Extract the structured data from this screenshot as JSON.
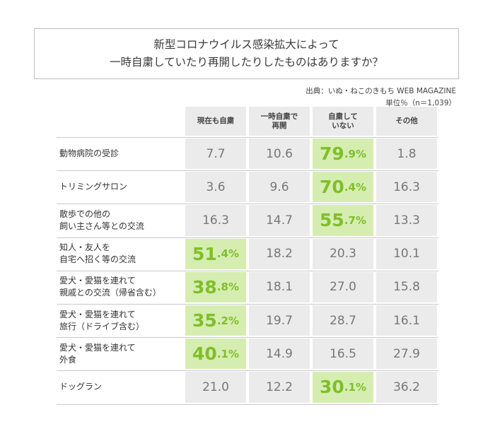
{
  "title": {
    "line1": "新型コロナウイルス感染拡大によって",
    "line2": "一時自粛していたり再開したりしたものはありますか？"
  },
  "source": "出典：いぬ・ねこのきもち WEB MAGAZINE",
  "unit": "単位％（n＝1,039）",
  "chart_data": {
    "type": "table",
    "columns": [
      "現在も自粛",
      "一時自粛で\n再開",
      "自粛して\nいない",
      "その他"
    ],
    "rows": [
      {
        "label": "動物病院の受診",
        "values": [
          "7.7",
          "10.6",
          "79.9",
          "1.8"
        ],
        "highlight": 2
      },
      {
        "label": "トリミングサロン",
        "values": [
          "3.6",
          "9.6",
          "70.4",
          "16.3"
        ],
        "highlight": 2
      },
      {
        "label": "散歩での他の\n飼い主さん等との交流",
        "values": [
          "16.3",
          "14.7",
          "55.7",
          "13.3"
        ],
        "highlight": 2
      },
      {
        "label": "知人・友人を\n自宅へ招く等の交流",
        "values": [
          "51.4",
          "18.2",
          "20.3",
          "10.1"
        ],
        "highlight": 0
      },
      {
        "label": "愛犬・愛猫を連れて\n親戚との交流（帰省含む）",
        "values": [
          "38.8",
          "18.1",
          "27.0",
          "15.8"
        ],
        "highlight": 0
      },
      {
        "label": "愛犬・愛猫を連れて\n旅行（ドライブ含む）",
        "values": [
          "35.2",
          "19.7",
          "28.7",
          "16.1"
        ],
        "highlight": 0
      },
      {
        "label": "愛犬・愛猫を連れて\n外食",
        "values": [
          "40.1",
          "14.9",
          "16.5",
          "27.9"
        ],
        "highlight": 0
      },
      {
        "label": "ドッグラン",
        "values": [
          "21.0",
          "12.2",
          "30.1",
          "36.2"
        ],
        "highlight": 2
      }
    ],
    "highlight_suffix": "%",
    "colors": {
      "cell": "#ebebeb",
      "highlight_cell": "#d6edb1",
      "highlight_text": "#7fbf2a",
      "value_text": "#777777"
    }
  }
}
